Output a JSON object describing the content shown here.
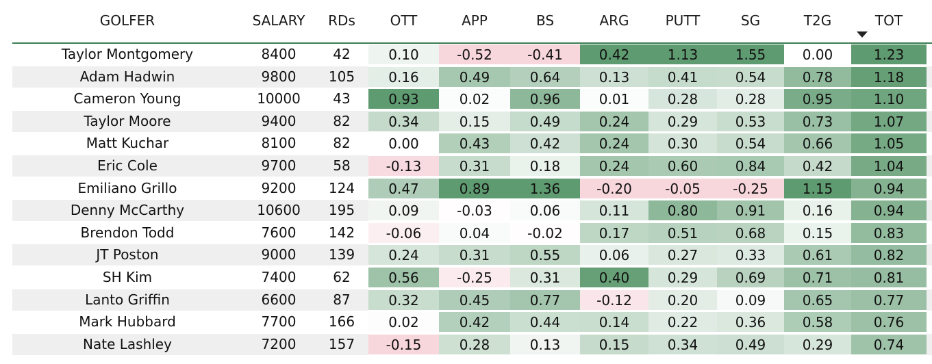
{
  "table": {
    "columns": [
      "GOLFER",
      "SALARY",
      "RDs",
      "OTT",
      "APP",
      "BS",
      "ARG",
      "PUTT",
      "SG",
      "T2G",
      "TOT"
    ],
    "sort_column": "TOT",
    "sort_direction": "descending",
    "colors": {
      "positive_max": "#5f9b70",
      "negative_max": "#f7d6dc",
      "neutral": "#ffffff",
      "header_rule": "#3a7d54",
      "alt_row": "#efefef"
    },
    "rows": [
      {
        "golfer": "Taylor Montgomery",
        "salary": "8400",
        "rds": "42",
        "ott": "0.10",
        "app": "-0.52",
        "bs": "-0.41",
        "arg": "0.42",
        "putt": "1.13",
        "sg": "1.55",
        "t2g": "0.00",
        "tot": "1.23"
      },
      {
        "golfer": "Adam Hadwin",
        "salary": "9800",
        "rds": "105",
        "ott": "0.16",
        "app": "0.49",
        "bs": "0.64",
        "arg": "0.13",
        "putt": "0.41",
        "sg": "0.54",
        "t2g": "0.78",
        "tot": "1.18"
      },
      {
        "golfer": "Cameron Young",
        "salary": "10000",
        "rds": "43",
        "ott": "0.93",
        "app": "0.02",
        "bs": "0.96",
        "arg": "0.01",
        "putt": "0.28",
        "sg": "0.28",
        "t2g": "0.95",
        "tot": "1.10"
      },
      {
        "golfer": "Taylor Moore",
        "salary": "9400",
        "rds": "82",
        "ott": "0.34",
        "app": "0.15",
        "bs": "0.49",
        "arg": "0.24",
        "putt": "0.29",
        "sg": "0.53",
        "t2g": "0.73",
        "tot": "1.07"
      },
      {
        "golfer": "Matt Kuchar",
        "salary": "8100",
        "rds": "82",
        "ott": "0.00",
        "app": "0.43",
        "bs": "0.42",
        "arg": "0.24",
        "putt": "0.30",
        "sg": "0.54",
        "t2g": "0.66",
        "tot": "1.05"
      },
      {
        "golfer": "Eric Cole",
        "salary": "9700",
        "rds": "58",
        "ott": "-0.13",
        "app": "0.31",
        "bs": "0.18",
        "arg": "0.24",
        "putt": "0.60",
        "sg": "0.84",
        "t2g": "0.42",
        "tot": "1.04"
      },
      {
        "golfer": "Emiliano Grillo",
        "salary": "9200",
        "rds": "124",
        "ott": "0.47",
        "app": "0.89",
        "bs": "1.36",
        "arg": "-0.20",
        "putt": "-0.05",
        "sg": "-0.25",
        "t2g": "1.15",
        "tot": "0.94"
      },
      {
        "golfer": "Denny McCarthy",
        "salary": "10600",
        "rds": "195",
        "ott": "0.09",
        "app": "-0.03",
        "bs": "0.06",
        "arg": "0.11",
        "putt": "0.80",
        "sg": "0.91",
        "t2g": "0.16",
        "tot": "0.94"
      },
      {
        "golfer": "Brendon Todd",
        "salary": "7600",
        "rds": "142",
        "ott": "-0.06",
        "app": "0.04",
        "bs": "-0.02",
        "arg": "0.17",
        "putt": "0.51",
        "sg": "0.68",
        "t2g": "0.15",
        "tot": "0.83"
      },
      {
        "golfer": "JT Poston",
        "salary": "9000",
        "rds": "139",
        "ott": "0.24",
        "app": "0.31",
        "bs": "0.55",
        "arg": "0.06",
        "putt": "0.27",
        "sg": "0.33",
        "t2g": "0.61",
        "tot": "0.82"
      },
      {
        "golfer": "SH Kim",
        "salary": "7400",
        "rds": "62",
        "ott": "0.56",
        "app": "-0.25",
        "bs": "0.31",
        "arg": "0.40",
        "putt": "0.29",
        "sg": "0.69",
        "t2g": "0.71",
        "tot": "0.81"
      },
      {
        "golfer": "Lanto Griffin",
        "salary": "6600",
        "rds": "87",
        "ott": "0.32",
        "app": "0.45",
        "bs": "0.77",
        "arg": "-0.12",
        "putt": "0.20",
        "sg": "0.09",
        "t2g": "0.65",
        "tot": "0.77"
      },
      {
        "golfer": "Mark Hubbard",
        "salary": "7700",
        "rds": "166",
        "ott": "0.02",
        "app": "0.42",
        "bs": "0.44",
        "arg": "0.14",
        "putt": "0.22",
        "sg": "0.36",
        "t2g": "0.58",
        "tot": "0.76"
      },
      {
        "golfer": "Nate Lashley",
        "salary": "7200",
        "rds": "157",
        "ott": "-0.15",
        "app": "0.28",
        "bs": "0.13",
        "arg": "0.15",
        "putt": "0.34",
        "sg": "0.49",
        "t2g": "0.29",
        "tot": "0.74"
      }
    ]
  }
}
